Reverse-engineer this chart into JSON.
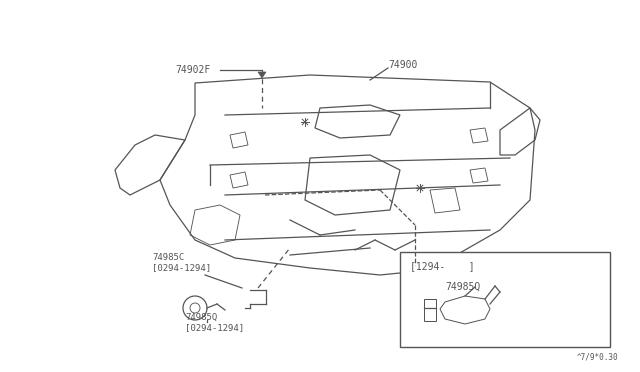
{
  "bg_color": "#ffffff",
  "line_color": "#555555",
  "part_label_74902F": "74902F",
  "part_label_74900": "74900",
  "part_label_74985C": "74985C",
  "part_label_74985C_date": "[0294-1294]",
  "part_label_74985Q": "74985Q",
  "part_label_74985Q_date": "[0294-1294]",
  "inset_label_date": "[1294-    ]",
  "inset_label_part": "74985Q",
  "footnote": "^7/9*0.30"
}
